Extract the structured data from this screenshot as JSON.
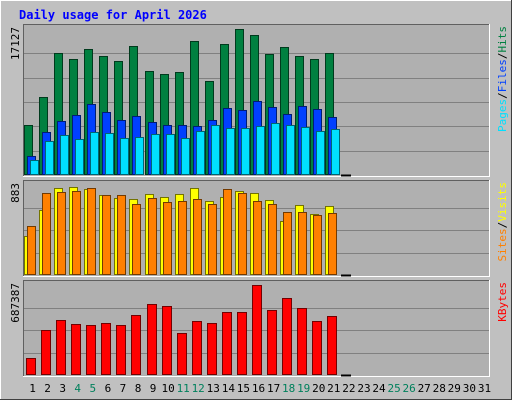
{
  "chart_data": {
    "type": "bar",
    "title": "Daily usage for April 2026",
    "days": [
      "1",
      "2",
      "3",
      "4",
      "5",
      "6",
      "7",
      "8",
      "9",
      "10",
      "11",
      "12",
      "13",
      "14",
      "15",
      "16",
      "17",
      "18",
      "19",
      "20",
      "21",
      "22",
      "23",
      "24",
      "25",
      "26",
      "27",
      "28",
      "29",
      "30",
      "31"
    ],
    "weekend_days": [
      "4",
      "5",
      "11",
      "12",
      "18",
      "19",
      "25",
      "26"
    ],
    "colors": {
      "hits": "#008040",
      "files": "#0040FF",
      "pages": "#00E0FF",
      "visits": "#FFFF00",
      "sites": "#FF8000",
      "kbytes": "#FF0000",
      "title": "#0000FF",
      "weekend": "#00805C",
      "weekday": "#000000",
      "background": "#C0C0C0",
      "plot": "#B0B0B0"
    },
    "panels": [
      {
        "id": "usage",
        "ymax_label": "17127",
        "ymax": 17127,
        "series": [
          {
            "name": "Hits",
            "values": [
              5820,
              9200,
              14350,
              13620,
              14760,
              13980,
              13320,
              15100,
              12180,
              11790,
              12030,
              15770,
              11030,
              15400,
              17127,
              16430,
              14200,
              14980,
              13950,
              13650,
              14300,
              null,
              null,
              null,
              null,
              null,
              null,
              null,
              null,
              null,
              null
            ]
          },
          {
            "name": "Files",
            "values": [
              2270,
              5030,
              6300,
              7000,
              8370,
              7340,
              6440,
              6880,
              6260,
              5850,
              5860,
              5750,
              6400,
              7820,
              7590,
              8630,
              7920,
              7120,
              8050,
              7740,
              6850,
              null,
              null,
              null,
              null,
              null,
              null,
              null,
              null,
              null,
              null
            ]
          },
          {
            "name": "Pages",
            "values": [
              1790,
              3930,
              4750,
              4260,
              5100,
              4960,
              4390,
              4490,
              4800,
              4800,
              4390,
              5210,
              5920,
              5520,
              5510,
              5720,
              6060,
              5860,
              5630,
              5190,
              5440,
              null,
              null,
              null,
              null,
              null,
              null,
              null,
              null,
              null,
              null
            ]
          }
        ],
        "legend": [
          "Pages",
          "/",
          "Files",
          "/",
          "Hits"
        ]
      },
      {
        "id": "visitors",
        "ymax_label": "883",
        "ymax": 883,
        "series": [
          {
            "name": "Visits",
            "values": [
              380,
              640,
              850,
              860,
              840,
              780,
              760,
              750,
              790,
              770,
              790,
              850,
              730,
              770,
              820,
              800,
              740,
              530,
              690,
              600,
              680,
              null,
              null,
              null,
              null,
              null,
              null,
              null,
              null,
              null,
              null
            ]
          },
          {
            "name": "Sites",
            "values": [
              480,
              800,
              810,
              820,
              850,
              780,
              780,
              700,
              760,
              720,
              730,
              750,
              700,
              840,
              800,
              730,
              700,
              620,
              620,
              590,
              610,
              null,
              null,
              null,
              null,
              null,
              null,
              null,
              null,
              null,
              null
            ]
          }
        ],
        "legend": [
          "Sites",
          "/",
          "Visits"
        ]
      },
      {
        "id": "kbytes",
        "ymax_label": "687387",
        "ymax": 687387,
        "series": [
          {
            "name": "KBytes",
            "values": [
              128000,
              340000,
              420000,
              387000,
              380000,
              400000,
              380000,
              460000,
              540000,
              530000,
              322000,
              413000,
              400000,
              478000,
              480000,
              687387,
              500000,
              590000,
              510000,
              413000,
              453000,
              null,
              null,
              null,
              null,
              null,
              null,
              null,
              null,
              null,
              null
            ]
          }
        ],
        "legend": [
          "KBytes"
        ]
      }
    ]
  }
}
